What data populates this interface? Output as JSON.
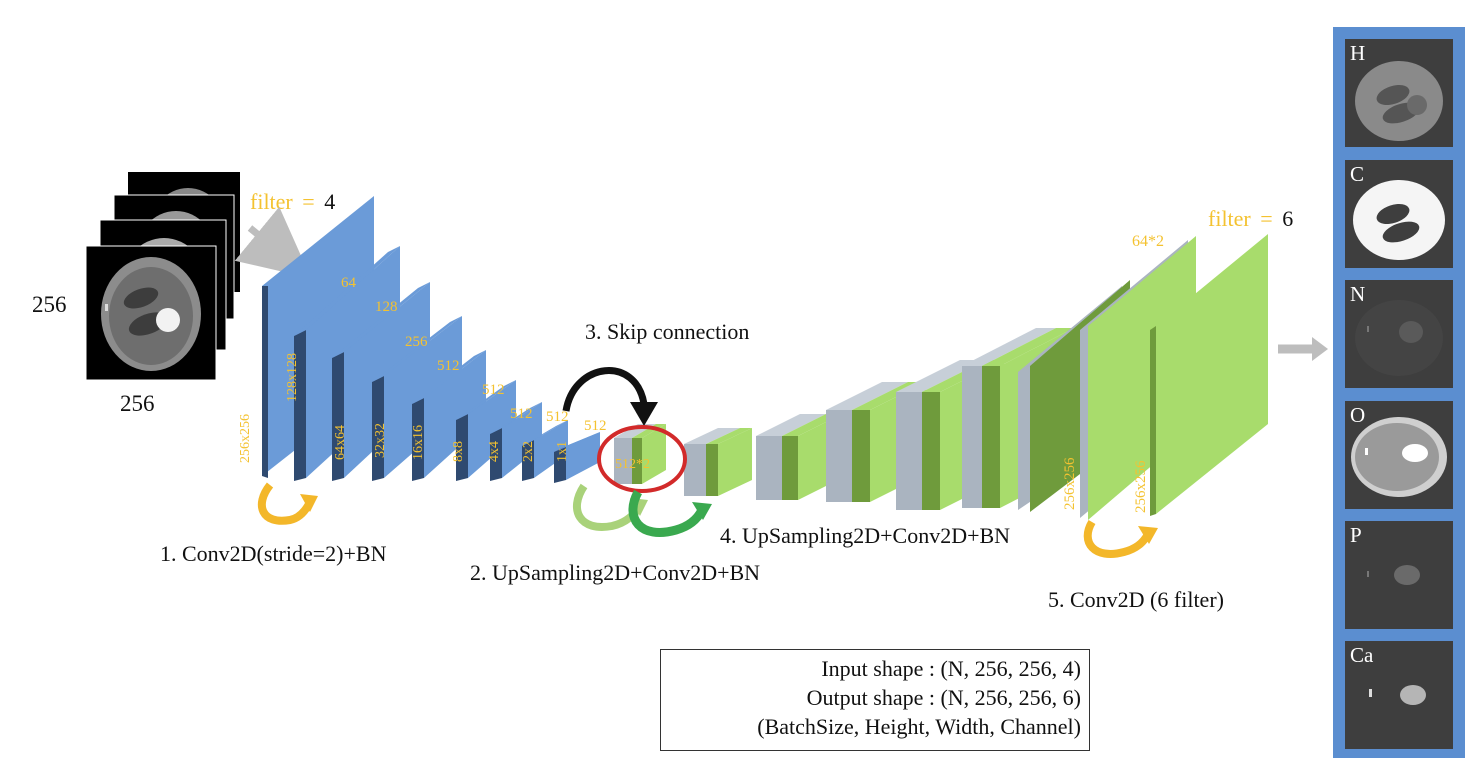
{
  "input": {
    "height_label": "256",
    "width_label": "256",
    "filter_word": "filter",
    "filter_eq": "=",
    "filter_value": "4"
  },
  "output_filter": {
    "filter_word": "filter",
    "filter_eq": "=",
    "filter_value": "6"
  },
  "encoder": {
    "channel_labels": [
      "64",
      "128",
      "256",
      "512",
      "512",
      "512",
      "512",
      "512"
    ],
    "size_labels": [
      "256x256",
      "128x128",
      "64x64",
      "32x32",
      "16x16",
      "8x8",
      "4x4",
      "2x2",
      "1x1"
    ]
  },
  "decoder": {
    "concat_label": "512*2",
    "top_concat_label": "64*2",
    "size_labels": [
      "256x256",
      "256x256"
    ]
  },
  "steps": {
    "step1": "1. Conv2D(stride=2)+BN",
    "step2": "2. UpSampling2D+Conv2D+BN",
    "step3": "3. Skip connection",
    "step4": "4. UpSampling2D+Conv2D+BN",
    "step5": "5. Conv2D (6 filter)"
  },
  "info": {
    "line1": "Input shape : (N, 256, 256, 4)",
    "line2": "Output shape : (N, 256, 256, 6)",
    "line3": "(BatchSize, Height, Width, Channel)"
  },
  "output_maps": [
    "H",
    "C",
    "N",
    "O",
    "P",
    "Ca"
  ],
  "colors": {
    "encoder_front": "#6b9bd8",
    "encoder_side": "#2f4a70",
    "decoder_green": "#a8dc6c",
    "decoder_green_dark": "#6f9b3c",
    "decoder_gray": "#aab4c0",
    "label_yellow": "#f4c230",
    "panel_blue": "#5b8ed0",
    "skip_ring": "#d22a2a"
  }
}
